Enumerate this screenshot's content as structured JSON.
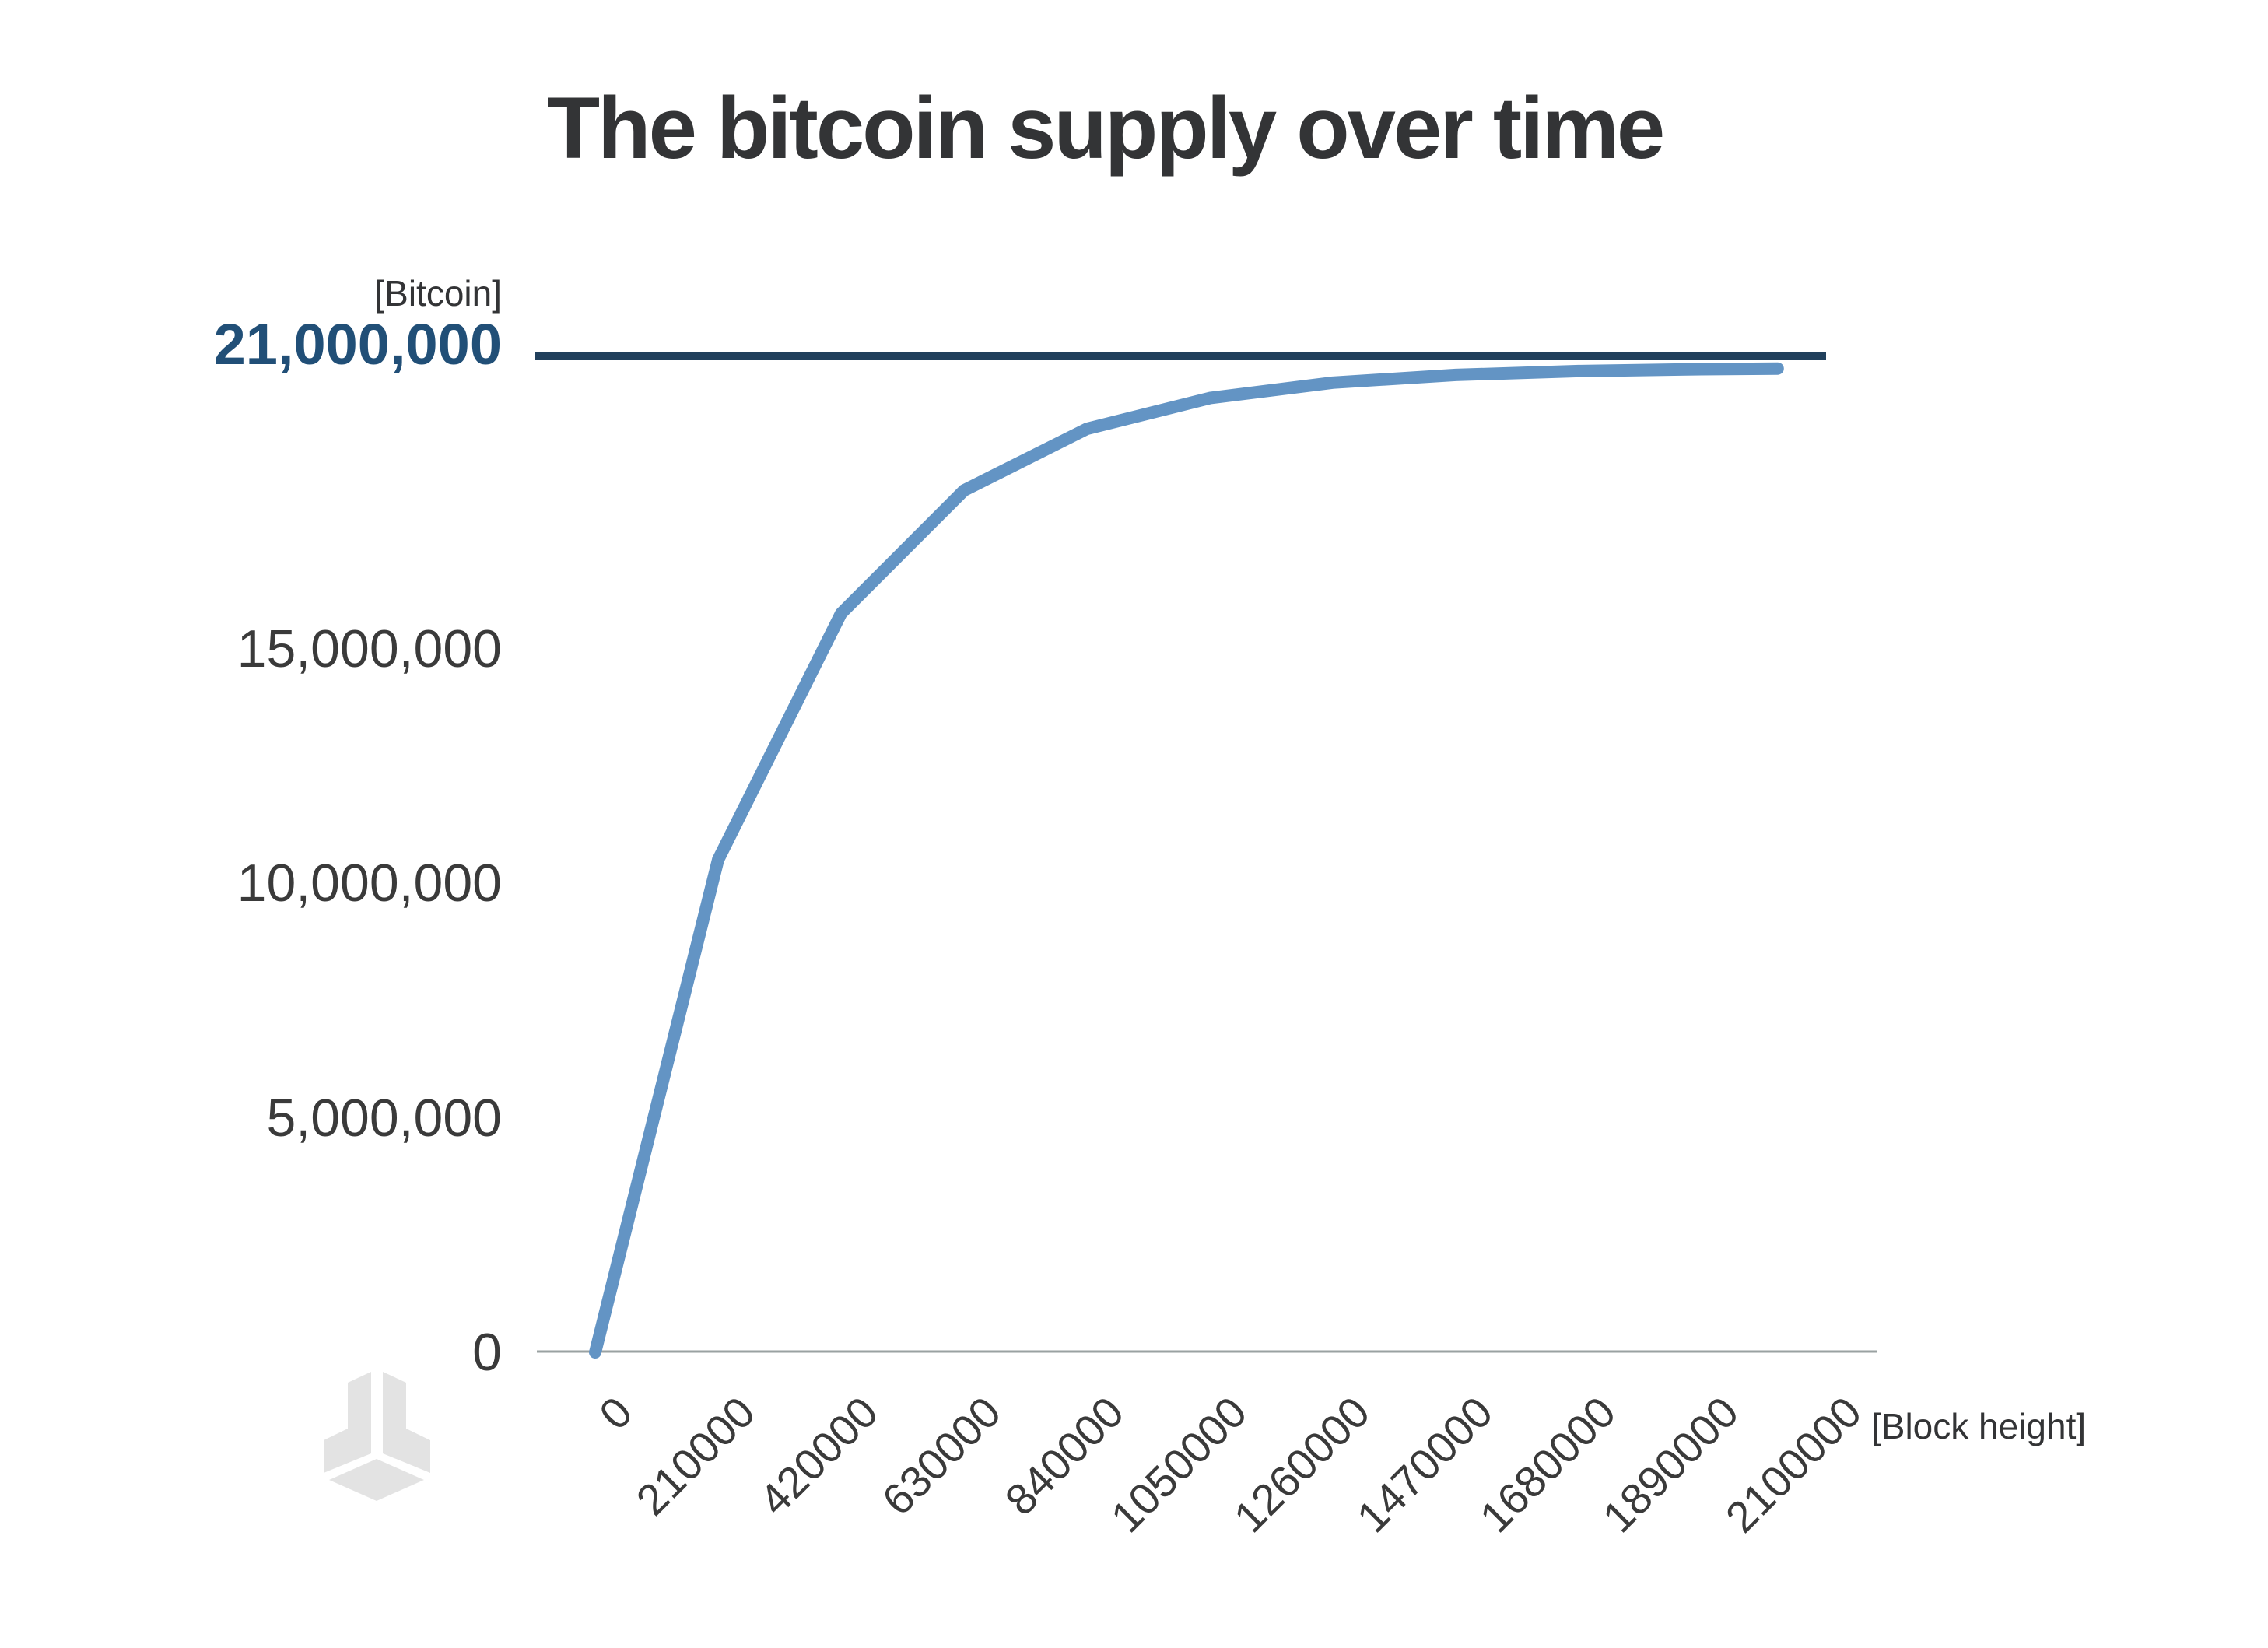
{
  "title": "The bitcoin supply over time",
  "y_axis": {
    "unit_label": "[Bitcoin]",
    "max_tick": {
      "label": "21,000,000",
      "value": 21000000
    },
    "ticks": [
      {
        "label": "15,000,000",
        "value": 15000000
      },
      {
        "label": "10,000,000",
        "value": 10000000
      },
      {
        "label": "5,000,000",
        "value": 5000000
      },
      {
        "label": "0",
        "value": 0
      }
    ]
  },
  "x_axis": {
    "label": "[Block height]",
    "ticks": [
      {
        "label": "0",
        "value": 0
      },
      {
        "label": "210000",
        "value": 210000
      },
      {
        "label": "420000",
        "value": 420000
      },
      {
        "label": "630000",
        "value": 630000
      },
      {
        "label": "840000",
        "value": 840000
      },
      {
        "label": "1050000",
        "value": 1050000
      },
      {
        "label": "1260000",
        "value": 1260000
      },
      {
        "label": "1470000",
        "value": 1470000
      },
      {
        "label": "1680000",
        "value": 1680000
      },
      {
        "label": "1890000",
        "value": 1890000
      },
      {
        "label": "2100000",
        "value": 2100000
      }
    ]
  },
  "watermark": {
    "icon": "block-cube-logo"
  },
  "colors": {
    "title_text": "#333436",
    "tick_text": "#3A3A3A",
    "max_label_blue": "#214F77",
    "max_line_navy": "#21405C",
    "curve_blue": "#6394C4",
    "axis_line_gray": "#9AA2A2",
    "logo_gray": "#E3E3E3"
  },
  "chart_data": {
    "type": "line",
    "title": "The bitcoin supply over time",
    "xlabel": "[Block height]",
    "ylabel": "[Bitcoin]",
    "xlim": [
      0,
      2190000
    ],
    "ylim": [
      0,
      21300000
    ],
    "x_ticks": [
      0,
      210000,
      420000,
      630000,
      840000,
      1050000,
      1260000,
      1470000,
      1680000,
      1890000,
      2100000
    ],
    "y_ticks": [
      0,
      5000000,
      10000000,
      15000000,
      21000000
    ],
    "grid": false,
    "legend": "none",
    "annotations": [
      {
        "type": "horizontal-reference-line",
        "value": 21000000,
        "label": "21,000,000"
      }
    ],
    "series": [
      {
        "name": "Bitcoin supply",
        "x": [
          0,
          210000,
          420000,
          630000,
          840000,
          1050000,
          1260000,
          1470000,
          1680000,
          1890000,
          2020000
        ],
        "y": [
          0,
          10500000,
          15750000,
          18375000,
          19687500,
          20343750,
          20671875,
          20835938,
          20917969,
          20958984,
          20971680
        ]
      }
    ]
  }
}
